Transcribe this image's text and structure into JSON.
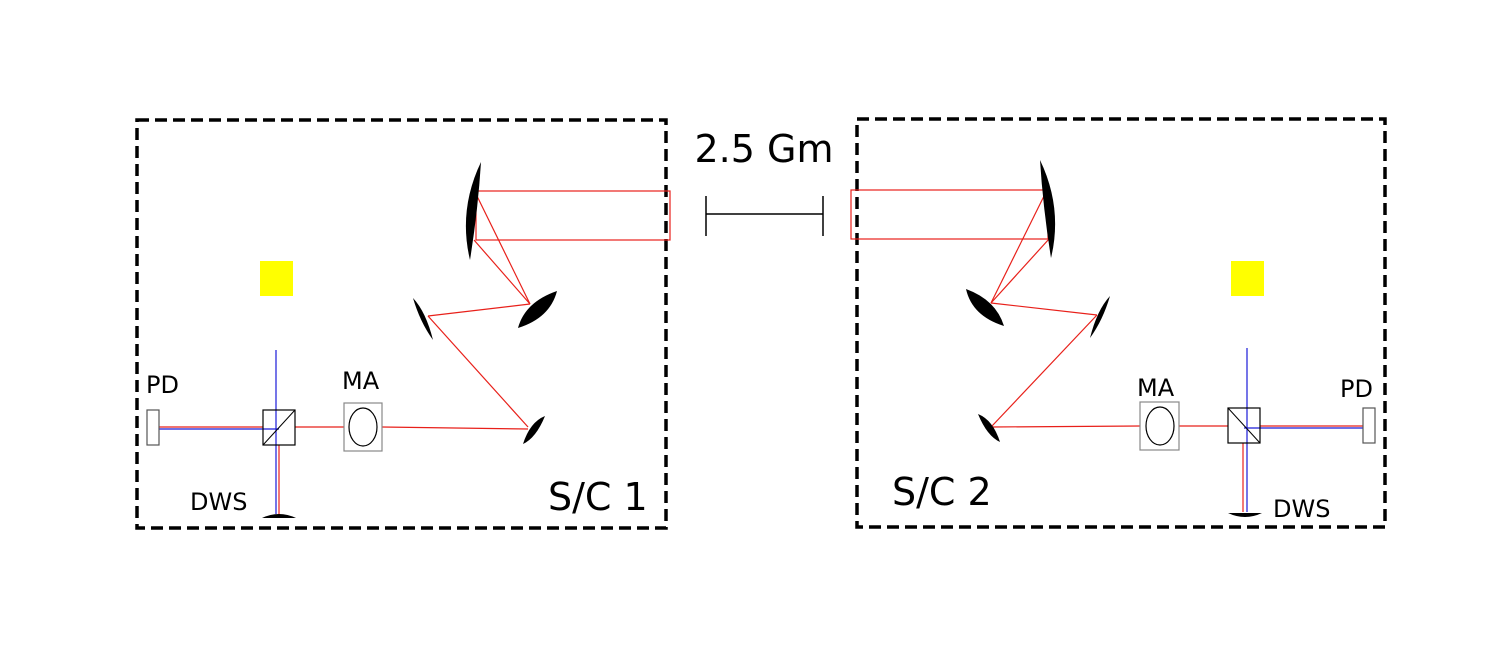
{
  "distance_label": "2.5 Gm",
  "spacecraft": [
    {
      "label": "S/C 1",
      "pd_label": "PD",
      "ma_label": "MA",
      "dws_label": "DWS"
    },
    {
      "label": "S/C 2",
      "pd_label": "PD",
      "ma_label": "MA",
      "dws_label": "DWS"
    }
  ],
  "colors": {
    "beam": "#e8201a",
    "local_beam": "#1a1ad8",
    "test_mass": "#ffff00",
    "frame": "#000000",
    "component_outline": "#888888"
  }
}
